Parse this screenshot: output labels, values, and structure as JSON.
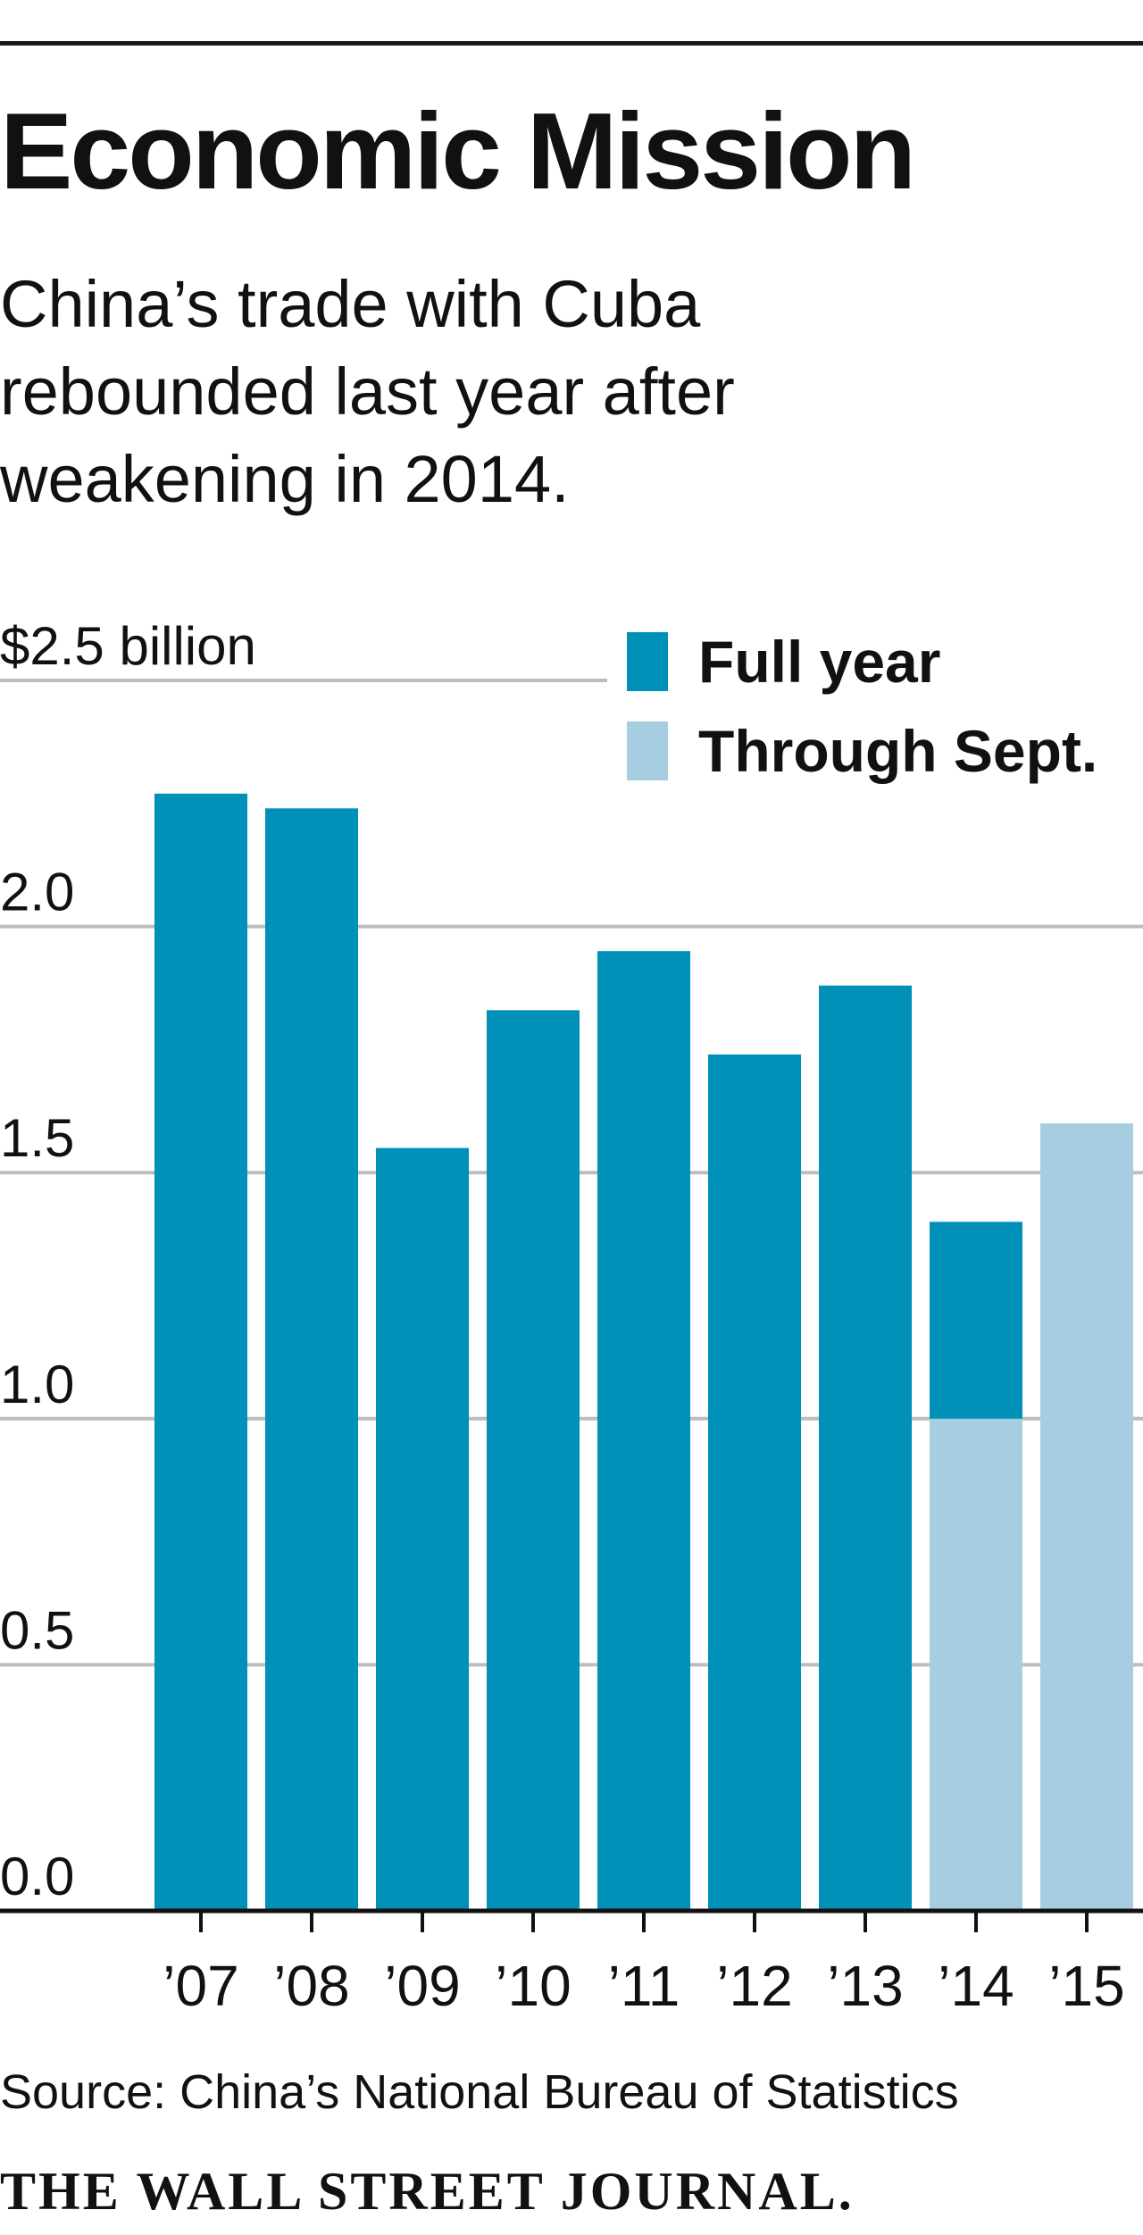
{
  "header": {
    "title": "Economic Mission",
    "subtitle_lines": [
      "China’s trade with Cuba",
      "rebounded last year after",
      "weakening in 2014."
    ]
  },
  "colors": {
    "full_year": "#0090b8",
    "through_sept": "#a6cde0",
    "grid": "#bdbdbd",
    "axis": "#111111"
  },
  "chart_data": {
    "type": "bar",
    "title": "Economic Mission",
    "subtitle": "China’s trade with Cuba rebounded last year after weakening in 2014.",
    "ylabel": "$2.5 billion",
    "ylim": [
      0,
      2.5
    ],
    "yticks": [
      0.0,
      0.5,
      1.0,
      1.5,
      2.0,
      2.5
    ],
    "ytick_labels": [
      "0.0",
      "0.5",
      "1.0",
      "1.5",
      "2.0",
      "$2.5 billion"
    ],
    "categories": [
      "’07",
      "’08",
      "’09",
      "’10",
      "’11",
      "’12",
      "’13",
      "’14",
      "’15"
    ],
    "series": [
      {
        "name": "Full year",
        "values": [
          2.27,
          2.24,
          1.55,
          1.83,
          1.95,
          1.74,
          1.88,
          1.4,
          null
        ]
      },
      {
        "name": "Through Sept.",
        "values": [
          null,
          null,
          null,
          null,
          null,
          null,
          null,
          1.0,
          1.6
        ]
      }
    ],
    "legend": [
      "Full year",
      "Through Sept."
    ],
    "legend_position": "top-right",
    "grid": true
  },
  "footer": {
    "source": "Source: China’s National Bureau of Statistics",
    "publisher": "THE WALL STREET JOURNAL."
  }
}
